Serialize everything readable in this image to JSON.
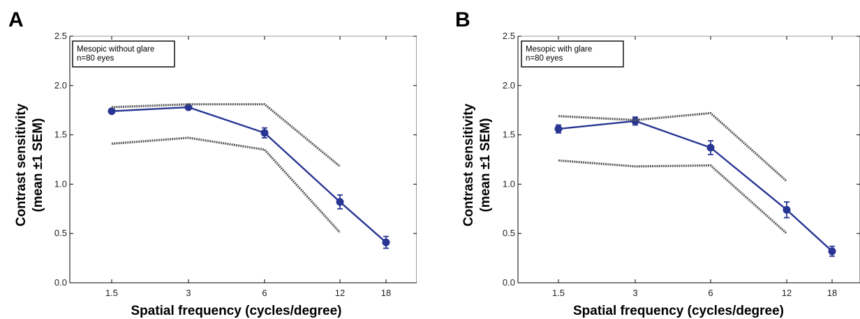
{
  "chart_data": [
    {
      "panel_label": "A",
      "type": "line",
      "xlabel": "Spatial frequency (cycles/degree)",
      "ylabel_lines": [
        "Contrast sensitivity",
        "(mean ±1 SEM)"
      ],
      "categories": [
        "1.5",
        "3",
        "6",
        "12",
        "18"
      ],
      "ylim": [
        0,
        2.5
      ],
      "yticks": [
        "0.0",
        "0.5",
        "1.0",
        "1.5",
        "2.0",
        "2.5"
      ],
      "legend": {
        "lines": [
          "Mesopic without glare",
          "n=80 eyes"
        ],
        "position": "top-left"
      },
      "series": [
        {
          "role": "mean",
          "color": "#283593",
          "values": [
            1.74,
            1.78,
            1.52,
            0.82,
            0.41
          ],
          "sem": [
            0.02,
            0.02,
            0.05,
            0.07,
            0.06
          ]
        },
        {
          "role": "normal-upper",
          "color": "#5c5c5c",
          "values": [
            1.78,
            1.81,
            1.81,
            1.18,
            null
          ]
        },
        {
          "role": "normal-lower",
          "color": "#5c5c5c",
          "values": [
            1.41,
            1.47,
            1.35,
            0.51,
            null
          ]
        }
      ]
    },
    {
      "panel_label": "B",
      "type": "line",
      "xlabel": "Spatial frequency (cycles/degree)",
      "ylabel_lines": [
        "Contrast sensitivity",
        "(mean ±1 SEM)"
      ],
      "categories": [
        "1.5",
        "3",
        "6",
        "12",
        "18"
      ],
      "ylim": [
        0,
        2.5
      ],
      "yticks": [
        "0.0",
        "0.5",
        "1.0",
        "1.5",
        "2.0",
        "2.5"
      ],
      "legend": {
        "lines": [
          "Mesopic with glare",
          "n=80 eyes"
        ],
        "position": "top-left"
      },
      "series": [
        {
          "role": "mean",
          "color": "#283593",
          "values": [
            1.56,
            1.64,
            1.37,
            0.74,
            0.32
          ],
          "sem": [
            0.04,
            0.04,
            0.07,
            0.08,
            0.05
          ]
        },
        {
          "role": "normal-upper",
          "color": "#5c5c5c",
          "values": [
            1.69,
            1.65,
            1.72,
            1.03,
            null
          ]
        },
        {
          "role": "normal-lower",
          "color": "#5c5c5c",
          "values": [
            1.24,
            1.18,
            1.19,
            0.5,
            null
          ]
        }
      ]
    }
  ]
}
